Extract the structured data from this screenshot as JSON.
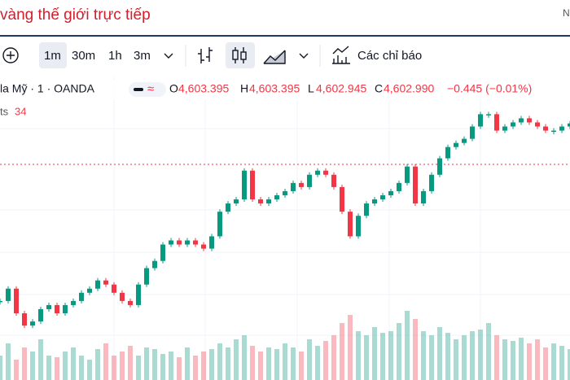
{
  "header": {
    "title": "vàng thế giới trực tiếp",
    "right_text": "N"
  },
  "toolbar": {
    "intervals": [
      "1m",
      "30m",
      "1h",
      "3m"
    ],
    "indicators": "Các chỉ báo"
  },
  "legend": {
    "symbol": "la Mỹ · 1 · OANDA",
    "ohlc": [
      {
        "key": "O",
        "value": "4,603.395"
      },
      {
        "key": "H",
        "value": "4,603.395"
      },
      {
        "key": "L",
        "value": "4,602.945"
      },
      {
        "key": "C",
        "value": "4,602.990"
      }
    ],
    "change": "−0.445 (−0.01%)",
    "volume_label": "ts",
    "volume_value": "34"
  },
  "chart_data": {
    "type": "candlestick",
    "values": [
      4589.7,
      4590.9,
      4588.5,
      4587.3,
      4587.7,
      4588.9,
      4589.3,
      4588.5,
      4589.3,
      4589.7,
      4590.5,
      4590.9,
      4591.7,
      4591.3,
      4590.5,
      4589.7,
      4589.3,
      4591.3,
      4592.9,
      4593.6,
      4595.2,
      4595.6,
      4595.2,
      4595.6,
      4595.2,
      4594.8,
      4596.0,
      4598.4,
      4599.2,
      4599.6,
      4602.4,
      4599.6,
      4599.2,
      4599.6,
      4600.0,
      4600.4,
      4601.2,
      4600.8,
      4602.0,
      4602.4,
      4602.0,
      4600.8,
      4598.4,
      4596.0,
      4598.0,
      4599.2,
      4599.6,
      4600.0,
      4600.4,
      4601.2,
      4602.8,
      4599.2,
      4600.4,
      4602.0,
      4603.6,
      4604.7,
      4605.1,
      4605.5,
      4606.7,
      4607.9,
      4607.9,
      4606.3,
      4606.7,
      4607.1,
      4607.5,
      4607.1,
      4606.7,
      4606.3,
      4606.3,
      4606.7,
      4607.0
    ],
    "ylim": [
      4582,
      4611.1
    ],
    "volume": [
      30,
      45,
      25,
      40,
      35,
      50,
      30,
      28,
      35,
      40,
      30,
      25,
      38,
      45,
      30,
      35,
      42,
      30,
      40,
      38,
      32,
      35,
      28,
      40,
      30,
      35,
      38,
      45,
      40,
      50,
      55,
      42,
      35,
      40,
      38,
      45,
      40,
      35,
      50,
      42,
      48,
      55,
      70,
      80,
      60,
      55,
      65,
      58,
      60,
      70,
      85,
      75,
      60,
      55,
      65,
      58,
      50,
      55,
      60,
      62,
      70,
      55,
      50,
      48,
      52,
      45,
      50,
      40,
      45,
      42,
      38
    ],
    "volume_ylim": [
      0,
      100
    ],
    "up_color": "#089981",
    "down_color": "#f23645"
  }
}
